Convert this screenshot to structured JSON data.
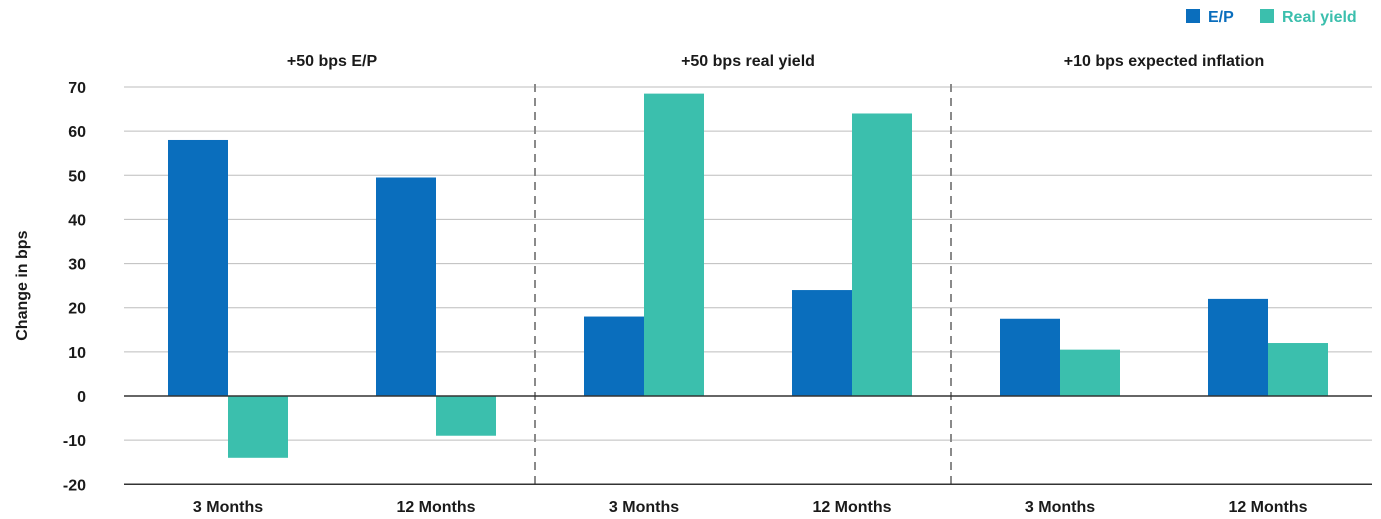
{
  "chart_data": {
    "type": "bar",
    "ylabel": "Change in bps",
    "ylim": [
      -20,
      70
    ],
    "yticks": [
      70,
      60,
      50,
      40,
      30,
      20,
      10,
      0,
      -10,
      -20
    ],
    "grid": true,
    "legend_position": "top-right",
    "colors": {
      "E/P": "#0a6ebd",
      "Real yield": "#3bbfad",
      "grid": "#bdbdbd",
      "divider": "#8a8a8a"
    },
    "legend": [
      "E/P",
      "Real yield"
    ],
    "panels": [
      {
        "title": "+50 bps E/P",
        "categories": [
          "3 Months",
          "12 Months"
        ],
        "series": [
          {
            "name": "E/P",
            "values": [
              58,
              49.5
            ]
          },
          {
            "name": "Real yield",
            "values": [
              -14,
              -9
            ]
          }
        ]
      },
      {
        "title": "+50 bps real yield",
        "categories": [
          "3 Months",
          "12  Months"
        ],
        "series": [
          {
            "name": "E/P",
            "values": [
              18,
              24
            ]
          },
          {
            "name": "Real yield",
            "values": [
              68.5,
              64
            ]
          }
        ]
      },
      {
        "title": "+10 bps expected inflation",
        "categories": [
          "3 Months",
          "12 Months"
        ],
        "series": [
          {
            "name": "E/P",
            "values": [
              17.5,
              22
            ]
          },
          {
            "name": "Real yield",
            "values": [
              10.5,
              12
            ]
          }
        ]
      }
    ]
  }
}
